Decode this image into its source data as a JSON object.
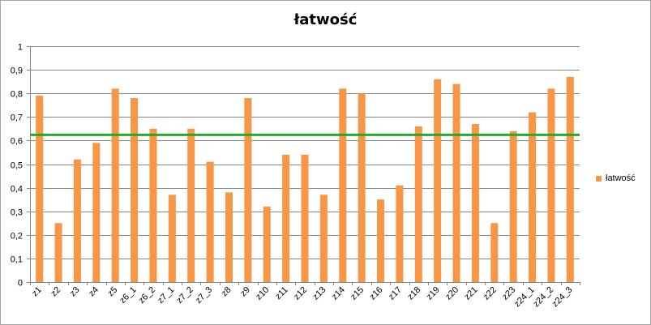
{
  "chart_data": {
    "type": "bar",
    "title": "łatwość",
    "xlabel": "",
    "ylabel": "",
    "ylim": [
      0,
      1
    ],
    "ytick_values": [
      0,
      0.1,
      0.2,
      0.3,
      0.4,
      0.5,
      0.6,
      0.7,
      0.8,
      0.9,
      1
    ],
    "ytick_labels": [
      "0",
      "0,1",
      "0,2",
      "0,3",
      "0,4",
      "0,5",
      "0,6",
      "0,7",
      "0,8",
      "0,9",
      "1"
    ],
    "grid": true,
    "categories": [
      "z1",
      "z2",
      "z3",
      "z4",
      "z5",
      "z6_1",
      "z6_2",
      "z7_1",
      "z7_2",
      "z7_3",
      "z8",
      "z9",
      "z10",
      "z11",
      "z12",
      "z13",
      "z14",
      "z15",
      "z16",
      "z17",
      "z18",
      "z19",
      "z20",
      "z21",
      "z22",
      "z23",
      "z24_1",
      "z24_2",
      "z24_3"
    ],
    "series": [
      {
        "name": "łatwość",
        "color": "#f79646",
        "values": [
          0.79,
          0.25,
          0.52,
          0.59,
          0.82,
          0.78,
          0.65,
          0.37,
          0.65,
          0.51,
          0.38,
          0.78,
          0.32,
          0.54,
          0.54,
          0.37,
          0.82,
          0.8,
          0.35,
          0.41,
          0.66,
          0.86,
          0.84,
          0.67,
          0.25,
          0.64,
          0.72,
          0.82,
          0.87
        ]
      }
    ],
    "reference_line": {
      "value": 0.624,
      "color": "#2aa82e"
    },
    "legend_position": "right"
  }
}
